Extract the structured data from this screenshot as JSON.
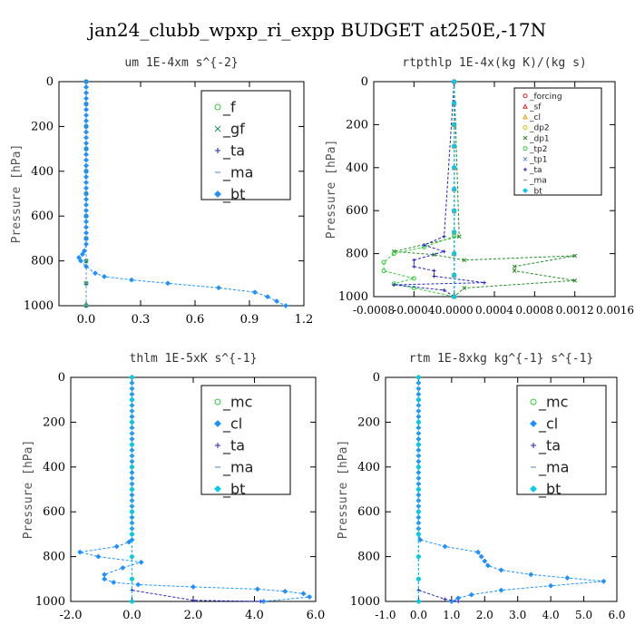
{
  "title": "jan24_clubb_wpxp_ri_expp  BUDGET at250E,-17N",
  "chart_data": [
    {
      "type": "line",
      "title": "um   1E-4xm s^{-2}",
      "ylabel": "Pressure [hPa]",
      "xlim": [
        -0.15,
        1.2
      ],
      "ylim": [
        1000,
        0
      ],
      "xticks": [
        "0.0",
        "0.3",
        "0.6",
        "0.9",
        "1.2"
      ],
      "xtick_values": [
        0.0,
        0.3,
        0.6,
        0.9,
        1.2
      ],
      "yticks": [
        "0",
        "200",
        "400",
        "600",
        "800",
        "1000"
      ],
      "ytick_values": [
        0,
        200,
        400,
        600,
        800,
        1000
      ],
      "legend_position": "top-right",
      "series": [
        {
          "name": "_f",
          "color": "#33cc33",
          "marker": "circle",
          "x": [
            0,
            0,
            0,
            0,
            0,
            0,
            0,
            0,
            0,
            0,
            0
          ],
          "y": [
            0,
            100,
            200,
            300,
            400,
            500,
            600,
            700,
            800,
            900,
            1000
          ]
        },
        {
          "name": "_gf",
          "color": "#228b57",
          "marker": "x",
          "x": [
            0,
            0,
            0,
            0,
            0,
            0,
            0,
            0,
            0,
            0,
            0
          ],
          "y": [
            0,
            100,
            200,
            300,
            400,
            500,
            600,
            700,
            800,
            900,
            1000
          ]
        },
        {
          "name": "_ta",
          "color": "#2222cc",
          "marker": "plus",
          "x": [
            0,
            0,
            0,
            0,
            0,
            0,
            0,
            0,
            0,
            0,
            0
          ],
          "y": [
            0,
            100,
            200,
            300,
            400,
            500,
            600,
            700,
            800,
            900,
            1000
          ]
        },
        {
          "name": "_ma",
          "color": "#6699cc",
          "marker": "dash",
          "x": [
            0,
            0,
            0,
            0,
            0,
            0,
            0,
            0,
            0,
            0,
            0
          ],
          "y": [
            0,
            100,
            200,
            300,
            400,
            500,
            600,
            700,
            800,
            900,
            1000
          ]
        },
        {
          "name": "_bt",
          "color": "#1e90ff",
          "marker": "diamond",
          "x": [
            0,
            0,
            0,
            0,
            0,
            0,
            0,
            0,
            0,
            0,
            0,
            0,
            0,
            0,
            0,
            0,
            0,
            0,
            0,
            0,
            0,
            0,
            0,
            0,
            0,
            0,
            0,
            0,
            0,
            0,
            -0.01,
            -0.02,
            -0.04,
            -0.03,
            0.0,
            0.05,
            0.1,
            0.25,
            0.45,
            0.73,
            0.93,
            1.0,
            1.05,
            1.1
          ],
          "y": [
            0,
            25,
            50,
            75,
            100,
            125,
            150,
            175,
            200,
            225,
            250,
            275,
            300,
            325,
            350,
            375,
            400,
            425,
            450,
            475,
            500,
            525,
            550,
            575,
            600,
            625,
            650,
            675,
            700,
            725,
            755,
            770,
            785,
            800,
            825,
            855,
            870,
            885,
            900,
            920,
            940,
            960,
            980,
            1000
          ]
        }
      ]
    },
    {
      "type": "line",
      "title": "rtpthlp   1E-4x(kg K)/(kg s)",
      "ylabel": "Pressure [hPa]",
      "xlim": [
        -0.0008,
        0.0016
      ],
      "ylim": [
        1000,
        0
      ],
      "xticks": [
        "-0.0008",
        "-0.0004",
        "0.0000",
        "0.0004",
        "0.0008",
        "0.0012",
        "0.0016"
      ],
      "xtick_values": [
        -0.0008,
        -0.0004,
        0.0,
        0.0004,
        0.0008,
        0.0012,
        0.0016
      ],
      "yticks": [
        "0",
        "200",
        "400",
        "600",
        "800",
        "1000"
      ],
      "ytick_values": [
        0,
        200,
        400,
        600,
        800,
        1000
      ],
      "legend_position": "top-right",
      "series": [
        {
          "name": "_forcing",
          "color": "#dd2222",
          "marker": "circle",
          "x": [
            0,
            0,
            0,
            0,
            0,
            0,
            0,
            0,
            0,
            0,
            0
          ],
          "y": [
            0,
            100,
            200,
            300,
            400,
            500,
            600,
            700,
            800,
            900,
            1000
          ]
        },
        {
          "name": "_sf",
          "color": "#dd2222",
          "marker": "triangle",
          "x": [
            0,
            0,
            0,
            0,
            0,
            0,
            0,
            0,
            0,
            0,
            0
          ],
          "y": [
            0,
            100,
            200,
            300,
            400,
            500,
            600,
            700,
            800,
            900,
            1000
          ]
        },
        {
          "name": "_cl",
          "color": "#ee9900",
          "marker": "triangle",
          "x": [
            0,
            0,
            0,
            0,
            0,
            0,
            0,
            0,
            0,
            0,
            0
          ],
          "y": [
            0,
            100,
            200,
            300,
            400,
            500,
            600,
            700,
            800,
            900,
            1000
          ]
        },
        {
          "name": "_dp2",
          "color": "#ddbb00",
          "marker": "circle",
          "x": [
            0,
            0,
            0,
            0,
            0,
            0,
            0,
            0,
            0,
            0,
            0
          ],
          "y": [
            0,
            100,
            200,
            300,
            400,
            500,
            600,
            700,
            800,
            900,
            1000
          ]
        },
        {
          "name": "_dp1",
          "color": "#228b22",
          "marker": "x",
          "x": [
            0,
            5e-05,
            -0.0006,
            -0.0002,
            0.0001,
            0.0012,
            0.0006,
            0.0006,
            0.0012,
            0.0001,
            0
          ],
          "y": [
            0,
            720,
            790,
            805,
            830,
            810,
            860,
            880,
            925,
            960,
            1000
          ]
        },
        {
          "name": "_tp2",
          "color": "#33cc33",
          "marker": "circle",
          "x": [
            0,
            0,
            -0.0003,
            -0.0006,
            -0.0007,
            -0.0007,
            -0.0004,
            -0.0006,
            -0.0004,
            0
          ],
          "y": [
            0,
            720,
            770,
            800,
            840,
            880,
            915,
            940,
            960,
            1000
          ]
        },
        {
          "name": "_tp1",
          "color": "#4488ee",
          "marker": "x",
          "x": [
            0,
            0,
            0,
            0,
            0,
            0,
            0,
            0,
            0,
            0,
            0
          ],
          "y": [
            0,
            100,
            200,
            300,
            400,
            500,
            600,
            700,
            800,
            900,
            1000
          ]
        },
        {
          "name": "_ta",
          "color": "#2222cc",
          "marker": "plus",
          "x": [
            0,
            -0.0001,
            -0.0003,
            -0.0001,
            -0.0004,
            -0.0004,
            -0.0002,
            -0.0002,
            0.0003,
            -0.0006,
            -0.0001,
            0
          ],
          "y": [
            0,
            720,
            760,
            790,
            830,
            860,
            880,
            905,
            935,
            945,
            970,
            1000
          ]
        },
        {
          "name": "_ma",
          "color": "#6699cc",
          "marker": "dash",
          "x": [
            0,
            0,
            0,
            0,
            0,
            0,
            0,
            0,
            0,
            0,
            0
          ],
          "y": [
            0,
            100,
            200,
            300,
            400,
            500,
            600,
            700,
            800,
            900,
            1000
          ]
        },
        {
          "name": "_bt",
          "color": "#00ccee",
          "marker": "diamond",
          "x": [
            0,
            0,
            0,
            0,
            0,
            0,
            0,
            0,
            0,
            0,
            0
          ],
          "y": [
            0,
            100,
            200,
            300,
            400,
            500,
            600,
            700,
            800,
            900,
            1000
          ]
        }
      ]
    },
    {
      "type": "line",
      "title": "thlm   1E-5xK s^{-1}",
      "ylabel": "Pressure [hPa]",
      "xlim": [
        -2.0,
        6.0
      ],
      "ylim": [
        1000,
        0
      ],
      "xticks": [
        "-2.0",
        "0.0",
        "2.0",
        "4.0",
        "6.0"
      ],
      "xtick_values": [
        -2.0,
        0.0,
        2.0,
        4.0,
        6.0
      ],
      "yticks": [
        "0",
        "200",
        "400",
        "600",
        "800",
        "1000"
      ],
      "ytick_values": [
        0,
        200,
        400,
        600,
        800,
        1000
      ],
      "legend_position": "top-right",
      "series": [
        {
          "name": "_mc",
          "color": "#33cc33",
          "marker": "circle",
          "x": [
            0,
            0,
            0,
            0,
            0,
            0,
            0,
            0,
            0,
            0,
            0
          ],
          "y": [
            0,
            100,
            200,
            300,
            400,
            500,
            600,
            700,
            800,
            900,
            1000
          ]
        },
        {
          "name": "_cl",
          "color": "#1e90ff",
          "marker": "diamond",
          "x": [
            0,
            0,
            0,
            0,
            0,
            0,
            0,
            0,
            0,
            0,
            0,
            0,
            0,
            0,
            0,
            0,
            0,
            0,
            0,
            0,
            0,
            0,
            0,
            0,
            0,
            0,
            0,
            0,
            0,
            0,
            -0.1,
            -0.5,
            -1.7,
            -1.1,
            0.3,
            -0.3,
            -0.9,
            -0.9,
            -0.6,
            0.2,
            2.0,
            4.1,
            5.0,
            5.6,
            5.8,
            4.3
          ],
          "y": [
            0,
            25,
            50,
            75,
            100,
            125,
            150,
            175,
            200,
            225,
            250,
            275,
            300,
            325,
            350,
            375,
            400,
            425,
            450,
            475,
            500,
            525,
            550,
            575,
            600,
            625,
            650,
            675,
            700,
            725,
            735,
            755,
            780,
            800,
            825,
            850,
            880,
            900,
            915,
            925,
            935,
            945,
            955,
            965,
            980,
            1000
          ]
        },
        {
          "name": "_ta",
          "color": "#2222cc",
          "marker": "plus",
          "x": [
            0,
            0,
            0,
            0,
            0,
            0,
            0,
            0,
            0,
            0,
            0,
            2.0,
            4.2
          ],
          "y": [
            0,
            100,
            200,
            300,
            400,
            500,
            600,
            700,
            800,
            900,
            950,
            995,
            1000
          ]
        },
        {
          "name": "_ma",
          "color": "#6699cc",
          "marker": "dash",
          "x": [
            0,
            0,
            0,
            0,
            0,
            0,
            0,
            0,
            0,
            0,
            0
          ],
          "y": [
            0,
            100,
            200,
            300,
            400,
            500,
            600,
            700,
            800,
            900,
            1000
          ]
        },
        {
          "name": "_bt",
          "color": "#00ccee",
          "marker": "diamond",
          "x": [
            0,
            0,
            0,
            0,
            0,
            0,
            0,
            0,
            0,
            0,
            0
          ],
          "y": [
            0,
            100,
            200,
            300,
            400,
            500,
            600,
            700,
            800,
            900,
            1000
          ]
        }
      ]
    },
    {
      "type": "line",
      "title": "rtm   1E-8xkg kg^{-1} s^{-1}",
      "ylabel": "Pressure [hPa]",
      "xlim": [
        -1.0,
        6.0
      ],
      "ylim": [
        1000,
        0
      ],
      "xticks": [
        "-1.0",
        "0.0",
        "1.0",
        "2.0",
        "3.0",
        "4.0",
        "5.0",
        "6.0"
      ],
      "xtick_values": [
        -1.0,
        0.0,
        1.0,
        2.0,
        3.0,
        4.0,
        5.0,
        6.0
      ],
      "yticks": [
        "0",
        "200",
        "400",
        "600",
        "800",
        "1000"
      ],
      "ytick_values": [
        0,
        200,
        400,
        600,
        800,
        1000
      ],
      "legend_position": "top-right",
      "series": [
        {
          "name": "_mc",
          "color": "#33cc33",
          "marker": "circle",
          "x": [
            0,
            0,
            0,
            0,
            0,
            0,
            0,
            0,
            0,
            0,
            0
          ],
          "y": [
            0,
            100,
            200,
            300,
            400,
            500,
            600,
            700,
            800,
            900,
            1000
          ]
        },
        {
          "name": "_cl",
          "color": "#1e90ff",
          "marker": "diamond",
          "x": [
            0,
            0,
            0,
            0,
            0,
            0,
            0,
            0,
            0,
            0,
            0,
            0,
            0,
            0,
            0,
            0,
            0,
            0,
            0,
            0,
            0,
            0,
            0,
            0,
            0,
            0,
            0,
            0,
            0,
            0.05,
            0.8,
            1.8,
            1.9,
            2.0,
            2.1,
            2.5,
            3.4,
            4.5,
            5.6,
            4.0,
            2.5,
            1.6,
            1.2,
            1.0
          ],
          "y": [
            0,
            25,
            50,
            75,
            100,
            125,
            150,
            175,
            200,
            225,
            250,
            275,
            300,
            325,
            350,
            375,
            400,
            425,
            450,
            475,
            500,
            525,
            550,
            575,
            600,
            625,
            650,
            675,
            700,
            725,
            755,
            780,
            800,
            820,
            840,
            860,
            880,
            895,
            910,
            930,
            950,
            970,
            985,
            1000
          ]
        },
        {
          "name": "_ta",
          "color": "#2222cc",
          "marker": "plus",
          "x": [
            0,
            0,
            0,
            0,
            0,
            0,
            0,
            0,
            0,
            0,
            0,
            0.8,
            1.2
          ],
          "y": [
            0,
            100,
            200,
            300,
            400,
            500,
            600,
            700,
            800,
            900,
            950,
            990,
            1000
          ]
        },
        {
          "name": "_ma",
          "color": "#6699cc",
          "marker": "dash",
          "x": [
            0,
            0,
            0,
            0,
            0,
            0,
            0,
            0,
            0,
            0,
            0
          ],
          "y": [
            0,
            100,
            200,
            300,
            400,
            500,
            600,
            700,
            800,
            900,
            1000
          ]
        },
        {
          "name": "_bt",
          "color": "#00ccee",
          "marker": "diamond",
          "x": [
            0,
            0,
            0,
            0,
            0,
            0,
            0,
            0,
            0,
            0,
            0
          ],
          "y": [
            0,
            100,
            200,
            300,
            400,
            500,
            600,
            700,
            800,
            900,
            1000
          ]
        }
      ]
    }
  ]
}
